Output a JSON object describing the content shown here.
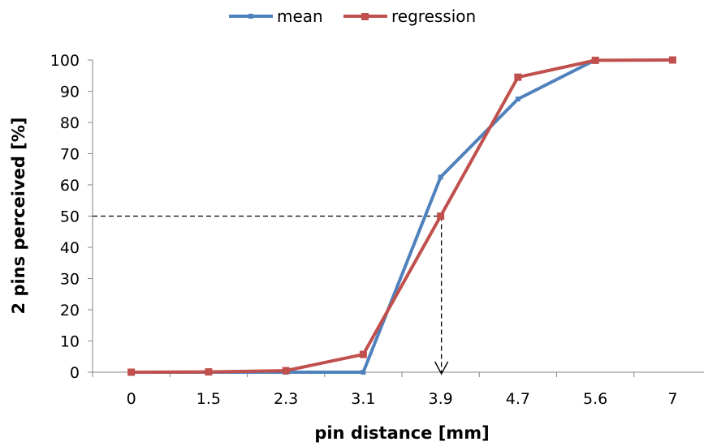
{
  "chart_data": {
    "type": "line",
    "categories": [
      "0",
      "1.5",
      "2.3",
      "3.1",
      "3.9",
      "4.7",
      "5.6",
      "7"
    ],
    "series": [
      {
        "name": "mean",
        "color": "#4F81BD",
        "marker": "square-small",
        "values": [
          0,
          0,
          0,
          0,
          62.5,
          87.5,
          100,
          null
        ]
      },
      {
        "name": "regression",
        "color": "#C0504D",
        "marker": "square",
        "values": [
          0,
          0.1,
          0.5,
          5.7,
          50,
          94.5,
          99.9,
          100
        ]
      }
    ],
    "xlabel": "pin distance [mm]",
    "ylabel": "2 pins perceived  [%]",
    "ylim": [
      0,
      100
    ],
    "yticks": [
      0,
      10,
      20,
      30,
      40,
      50,
      60,
      70,
      80,
      90,
      100
    ],
    "grid": false,
    "legend_position": "top",
    "annotation": {
      "type": "dashed-guide",
      "y": 50,
      "x_category": "3.9",
      "arrow": "down"
    }
  }
}
